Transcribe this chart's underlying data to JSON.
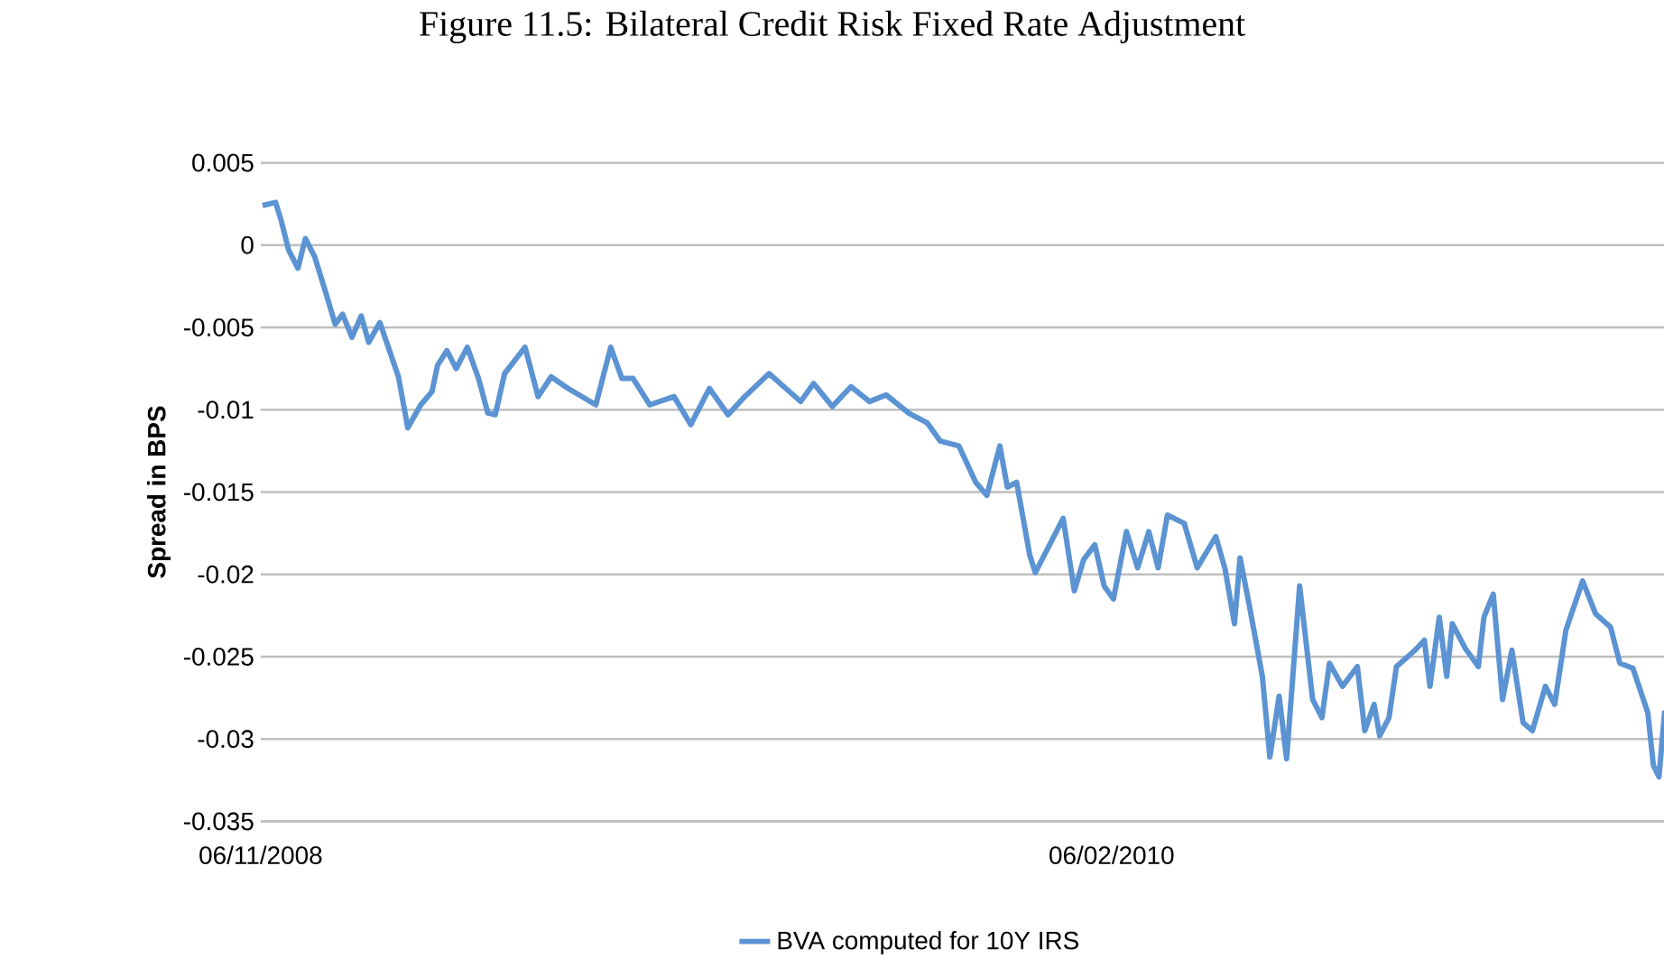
{
  "chart_data": {
    "type": "line",
    "title": "Figure 11.5: Bilateral Credit Risk Fixed Rate Adjustment",
    "ylabel": "Spread in BPS",
    "x": [
      "2008-11-07",
      "2008-11-14",
      "2008-11-17",
      "2008-11-21",
      "2008-11-26",
      "2008-11-30",
      "2008-12-05",
      "2008-12-11",
      "2008-12-16",
      "2008-12-20",
      "2008-12-25",
      "2008-12-30",
      "2009-01-03",
      "2009-01-09",
      "2009-01-19",
      "2009-01-24",
      "2009-01-31",
      "2009-02-06",
      "2009-02-09",
      "2009-02-14",
      "2009-02-19",
      "2009-02-25",
      "2009-03-03",
      "2009-03-08",
      "2009-03-12",
      "2009-03-17",
      "2009-03-28",
      "2009-04-04",
      "2009-04-11",
      "2009-04-20",
      "2009-05-05",
      "2009-05-13",
      "2009-05-19",
      "2009-05-25",
      "2009-06-03",
      "2009-06-16",
      "2009-06-25",
      "2009-07-05",
      "2009-07-15",
      "2009-07-24",
      "2009-08-06",
      "2009-08-23",
      "2009-08-30",
      "2009-09-09",
      "2009-09-19",
      "2009-09-29",
      "2009-10-08",
      "2009-10-20",
      "2009-10-30",
      "2009-11-06",
      "2009-11-16",
      "2009-11-25",
      "2009-12-01",
      "2009-12-08",
      "2009-12-12",
      "2009-12-17",
      "2009-12-24",
      "2009-12-27",
      "2010-01-11",
      "2010-01-17",
      "2010-01-22",
      "2010-01-28",
      "2010-02-02",
      "2010-02-07",
      "2010-02-14",
      "2010-02-20",
      "2010-02-26",
      "2010-03-03",
      "2010-03-08",
      "2010-03-17",
      "2010-03-24",
      "2010-04-03",
      "2010-04-08",
      "2010-04-13",
      "2010-04-16",
      "2010-04-21",
      "2010-04-28",
      "2010-05-02",
      "2010-05-07",
      "2010-05-11",
      "2010-05-18",
      "2010-05-25",
      "2010-05-30",
      "2010-06-03",
      "2010-06-10",
      "2010-06-18",
      "2010-06-22",
      "2010-06-27",
      "2010-06-30",
      "2010-07-05",
      "2010-07-09",
      "2010-07-19",
      "2010-07-24",
      "2010-07-27",
      "2010-08-01",
      "2010-08-05",
      "2010-08-08",
      "2010-08-15",
      "2010-08-22",
      "2010-08-25",
      "2010-08-30",
      "2010-09-04",
      "2010-09-09",
      "2010-09-15",
      "2010-09-20",
      "2010-09-27",
      "2010-10-02",
      "2010-10-08",
      "2010-10-17",
      "2010-10-24",
      "2010-11-01",
      "2010-11-06",
      "2010-11-13",
      "2010-11-21",
      "2010-11-24",
      "2010-11-27",
      "2010-11-30",
      "2010-12-04"
    ],
    "series": [
      {
        "name": "BVA computed for 10Y IRS",
        "color": "#5b93d3",
        "values": [
          0.0024,
          0.0026,
          0.0015,
          -0.0003,
          -0.0014,
          0.0004,
          -0.0007,
          -0.0029,
          -0.0048,
          -0.0042,
          -0.0056,
          -0.0043,
          -0.0059,
          -0.0047,
          -0.008,
          -0.0111,
          -0.0097,
          -0.0089,
          -0.0073,
          -0.0064,
          -0.0075,
          -0.0062,
          -0.0081,
          -0.0102,
          -0.0103,
          -0.0078,
          -0.0062,
          -0.0092,
          -0.008,
          -0.0087,
          -0.0097,
          -0.0062,
          -0.0081,
          -0.0081,
          -0.0097,
          -0.0092,
          -0.0109,
          -0.0087,
          -0.0103,
          -0.0092,
          -0.0078,
          -0.0095,
          -0.0084,
          -0.0098,
          -0.0086,
          -0.0095,
          -0.0091,
          -0.0102,
          -0.0108,
          -0.0119,
          -0.0122,
          -0.0144,
          -0.0152,
          -0.0122,
          -0.0147,
          -0.0144,
          -0.0188,
          -0.0199,
          -0.0166,
          -0.021,
          -0.0191,
          -0.0182,
          -0.0207,
          -0.0215,
          -0.0174,
          -0.0196,
          -0.0174,
          -0.0196,
          -0.0164,
          -0.0169,
          -0.0196,
          -0.0177,
          -0.0197,
          -0.023,
          -0.019,
          -0.0219,
          -0.0262,
          -0.0311,
          -0.0274,
          -0.0312,
          -0.0207,
          -0.0276,
          -0.0287,
          -0.0254,
          -0.0268,
          -0.0256,
          -0.0295,
          -0.0279,
          -0.0298,
          -0.0287,
          -0.0256,
          -0.0246,
          -0.024,
          -0.0268,
          -0.0226,
          -0.0262,
          -0.023,
          -0.0245,
          -0.0256,
          -0.0226,
          -0.0212,
          -0.0276,
          -0.0246,
          -0.029,
          -0.0295,
          -0.0268,
          -0.0279,
          -0.0234,
          -0.0204,
          -0.0224,
          -0.0232,
          -0.0254,
          -0.0257,
          -0.0284,
          -0.0316,
          -0.0323,
          -0.0284,
          -0.0312
        ]
      }
    ],
    "xlim": [
      "2008-11-06",
      "2010-12-04"
    ],
    "xticks": [
      {
        "value": "2008-11-06",
        "label": "06/11/2008"
      },
      {
        "value": "2010-02-06",
        "label": "06/02/2010"
      }
    ],
    "ylim": [
      -0.035,
      0.005
    ],
    "yticks": [
      0.005,
      0,
      -0.005,
      -0.01,
      -0.015,
      -0.02,
      -0.025,
      -0.03,
      -0.035
    ],
    "grid": "y",
    "legend": "bottom"
  }
}
